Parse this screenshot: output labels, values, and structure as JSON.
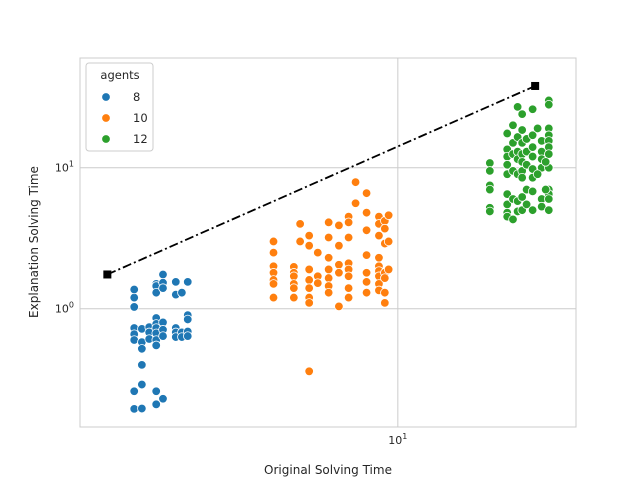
{
  "chart_data": {
    "type": "scatter",
    "title": "",
    "xlabel": "Original Solving Time",
    "ylabel": "Explanation Solving Time",
    "xscale": "log",
    "yscale": "log",
    "xlim": [
      1.7,
      27
    ],
    "ylim": [
      0.145,
      60
    ],
    "grid": true,
    "legend": {
      "title": "agents",
      "position": "top-left"
    },
    "x_ticks": [
      {
        "value": 10,
        "label": "10^1"
      }
    ],
    "y_ticks": [
      {
        "value": 1,
        "label": "10^0"
      },
      {
        "value": 10,
        "label": "10^1"
      }
    ],
    "series": [
      {
        "name": "8",
        "color": "#1f77b4",
        "points": [
          [
            2.3,
            1.03
          ],
          [
            2.3,
            1.2
          ],
          [
            2.3,
            1.37
          ],
          [
            2.3,
            0.73
          ],
          [
            2.3,
            0.66
          ],
          [
            2.3,
            0.6
          ],
          [
            2.3,
            0.26
          ],
          [
            2.3,
            0.195
          ],
          [
            2.4,
            0.72
          ],
          [
            2.4,
            0.58
          ],
          [
            2.4,
            0.52
          ],
          [
            2.4,
            0.4
          ],
          [
            2.4,
            0.29
          ],
          [
            2.4,
            0.196
          ],
          [
            2.5,
            0.74
          ],
          [
            2.5,
            0.68
          ],
          [
            2.5,
            0.61
          ],
          [
            2.6,
            1.5
          ],
          [
            2.6,
            1.45
          ],
          [
            2.6,
            1.3
          ],
          [
            2.6,
            0.86
          ],
          [
            2.6,
            0.78
          ],
          [
            2.6,
            0.73
          ],
          [
            2.6,
            0.67
          ],
          [
            2.6,
            0.6
          ],
          [
            2.6,
            0.55
          ],
          [
            2.6,
            0.26
          ],
          [
            2.6,
            0.21
          ],
          [
            2.7,
            1.75
          ],
          [
            2.7,
            1.53
          ],
          [
            2.7,
            1.4
          ],
          [
            2.7,
            0.8
          ],
          [
            2.7,
            0.71
          ],
          [
            2.7,
            0.64
          ],
          [
            2.7,
            0.23
          ],
          [
            2.9,
            1.55
          ],
          [
            2.9,
            1.26
          ],
          [
            2.9,
            0.73
          ],
          [
            2.9,
            0.68
          ],
          [
            2.9,
            0.63
          ],
          [
            3.0,
            1.3
          ],
          [
            3.0,
            0.68
          ],
          [
            3.0,
            0.63
          ],
          [
            3.1,
            1.55
          ],
          [
            3.1,
            0.9
          ],
          [
            3.1,
            0.84
          ],
          [
            3.1,
            0.69
          ],
          [
            3.1,
            0.64
          ]
        ]
      },
      {
        "name": "10",
        "color": "#ff7f0e",
        "points": [
          [
            5.0,
            3.0
          ],
          [
            5.0,
            2.5
          ],
          [
            5.0,
            2.0
          ],
          [
            5.0,
            1.8
          ],
          [
            5.0,
            1.6
          ],
          [
            5.0,
            1.5
          ],
          [
            5.0,
            1.2
          ],
          [
            5.6,
            1.98
          ],
          [
            5.6,
            1.8
          ],
          [
            5.6,
            1.7
          ],
          [
            5.6,
            1.5
          ],
          [
            5.6,
            1.4
          ],
          [
            5.6,
            1.2
          ],
          [
            5.8,
            4.0
          ],
          [
            5.8,
            3.0
          ],
          [
            6.1,
            3.3
          ],
          [
            6.1,
            2.8
          ],
          [
            6.1,
            1.9
          ],
          [
            6.1,
            1.6
          ],
          [
            6.1,
            1.4
          ],
          [
            6.1,
            1.2
          ],
          [
            6.1,
            1.1
          ],
          [
            6.1,
            0.36
          ],
          [
            6.4,
            2.5
          ],
          [
            6.4,
            1.7
          ],
          [
            6.4,
            1.52
          ],
          [
            6.8,
            4.1
          ],
          [
            6.8,
            3.2
          ],
          [
            6.8,
            2.3
          ],
          [
            6.8,
            1.9
          ],
          [
            6.8,
            1.65
          ],
          [
            6.8,
            1.45
          ],
          [
            6.8,
            1.3
          ],
          [
            7.2,
            3.9
          ],
          [
            7.2,
            2.8
          ],
          [
            7.2,
            2.05
          ],
          [
            7.2,
            1.8
          ],
          [
            7.2,
            1.04
          ],
          [
            7.6,
            4.5
          ],
          [
            7.6,
            4.1
          ],
          [
            7.6,
            3.2
          ],
          [
            7.6,
            2.1
          ],
          [
            7.6,
            1.9
          ],
          [
            7.6,
            1.7
          ],
          [
            7.6,
            1.4
          ],
          [
            7.6,
            1.2
          ],
          [
            7.9,
            7.9
          ],
          [
            7.9,
            5.6
          ],
          [
            8.4,
            6.6
          ],
          [
            8.4,
            4.8
          ],
          [
            8.4,
            3.6
          ],
          [
            8.4,
            2.4
          ],
          [
            8.4,
            1.8
          ],
          [
            8.4,
            1.55
          ],
          [
            8.4,
            1.3
          ],
          [
            9.0,
            4.5
          ],
          [
            9.0,
            4.0
          ],
          [
            9.0,
            3.3
          ],
          [
            9.0,
            2.3
          ],
          [
            9.0,
            2.0
          ],
          [
            9.0,
            1.85
          ],
          [
            9.0,
            1.7
          ],
          [
            9.0,
            1.5
          ],
          [
            9.0,
            1.35
          ],
          [
            9.3,
            4.2
          ],
          [
            9.3,
            3.7
          ],
          [
            9.3,
            2.9
          ],
          [
            9.3,
            1.8
          ],
          [
            9.3,
            1.65
          ],
          [
            9.3,
            1.3
          ],
          [
            9.3,
            1.1
          ],
          [
            9.5,
            4.6
          ],
          [
            9.5,
            3.0
          ],
          [
            9.5,
            1.9
          ]
        ]
      },
      {
        "name": "12",
        "color": "#2ca02c",
        "points": [
          [
            16.7,
            10.8
          ],
          [
            16.7,
            9.5
          ],
          [
            16.7,
            7.5
          ],
          [
            16.7,
            7.0
          ],
          [
            16.7,
            5.2
          ],
          [
            16.7,
            4.9
          ],
          [
            18.4,
            17.5
          ],
          [
            18.4,
            13.5
          ],
          [
            18.4,
            12.0
          ],
          [
            18.4,
            10.5
          ],
          [
            18.4,
            9.0
          ],
          [
            18.4,
            6.5
          ],
          [
            18.4,
            5.5
          ],
          [
            18.4,
            4.8
          ],
          [
            18.4,
            4.5
          ],
          [
            19.0,
            20.0
          ],
          [
            19.0,
            15.0
          ],
          [
            19.0,
            12.5
          ],
          [
            19.0,
            9.5
          ],
          [
            19.0,
            6.0
          ],
          [
            19.0,
            4.3
          ],
          [
            19.5,
            27.0
          ],
          [
            19.5,
            16.5
          ],
          [
            19.5,
            13.0
          ],
          [
            19.5,
            11.5
          ],
          [
            19.5,
            9.0
          ],
          [
            19.5,
            5.8
          ],
          [
            19.5,
            4.9
          ],
          [
            20.0,
            24.0
          ],
          [
            20.0,
            18.5
          ],
          [
            20.0,
            15.0
          ],
          [
            20.0,
            12.5
          ],
          [
            20.0,
            11.0
          ],
          [
            20.0,
            9.5
          ],
          [
            20.0,
            8.5
          ],
          [
            20.0,
            6.2
          ],
          [
            20.0,
            5.0
          ],
          [
            20.5,
            16.0
          ],
          [
            20.5,
            13.0
          ],
          [
            20.5,
            10.5
          ],
          [
            20.5,
            7.0
          ],
          [
            20.5,
            5.5
          ],
          [
            21.2,
            26.0
          ],
          [
            21.2,
            17.0
          ],
          [
            21.2,
            14.0
          ],
          [
            21.2,
            12.0
          ],
          [
            21.2,
            9.8
          ],
          [
            21.2,
            8.5
          ],
          [
            21.2,
            6.8
          ],
          [
            21.2,
            5.0
          ],
          [
            22.3,
            15.5
          ],
          [
            22.3,
            13.0
          ],
          [
            22.3,
            11.5
          ],
          [
            22.3,
            10.0
          ],
          [
            22.3,
            6.0
          ],
          [
            22.3,
            5.3
          ],
          [
            23.2,
            30.0
          ],
          [
            23.2,
            28.0
          ],
          [
            23.2,
            19.0
          ],
          [
            23.2,
            17.0
          ],
          [
            23.2,
            15.5
          ],
          [
            23.2,
            14.0
          ],
          [
            23.2,
            12.5
          ],
          [
            23.2,
            10.0
          ],
          [
            23.2,
            7.0
          ],
          [
            23.2,
            6.5
          ],
          [
            23.2,
            6.0
          ],
          [
            23.2,
            5.0
          ],
          [
            21.8,
            19.0
          ],
          [
            21.8,
            9.0
          ],
          [
            22.8,
            11.0
          ],
          [
            22.8,
            7.0
          ]
        ]
      }
    ],
    "line": {
      "style": "dash-dot",
      "color": "#000000",
      "marker": "square",
      "points": [
        [
          1.98,
          1.75
        ],
        [
          21.5,
          38.0
        ]
      ]
    }
  }
}
